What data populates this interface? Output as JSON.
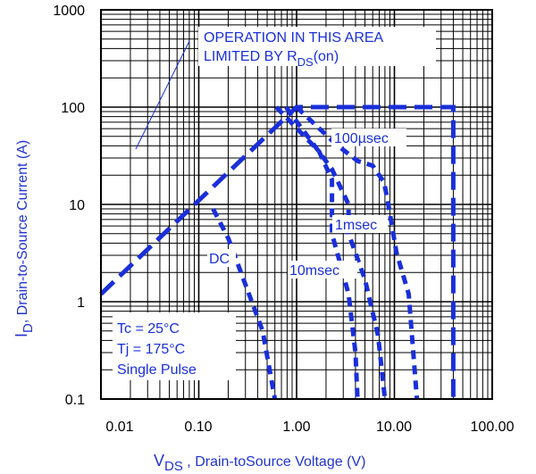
{
  "chart_data": {
    "type": "line",
    "x_scale": "log",
    "y_scale": "log",
    "xlim": [
      0.01,
      100
    ],
    "ylim": [
      0.1,
      1000
    ],
    "grid": true,
    "x_tick_labels": [
      "0.01",
      "0.10",
      "1.00",
      "10.00",
      "100.00"
    ],
    "y_tick_labels": [
      "0.1",
      "1",
      "10",
      "100",
      "1000"
    ],
    "xlabel": {
      "main": "V",
      "sub": "DS",
      "rest": " , Drain-toSource Voltage (V)"
    },
    "ylabel": {
      "main": "I",
      "sub": "D",
      "rest": ",  Drain-to-Source Current (A)"
    },
    "annotation_operation": {
      "line1": "OPERATION IN THIS AREA",
      "line2_main": "LIMITED BY R",
      "line2_sub": "DS",
      "line2_rest": "(on)"
    },
    "conditions": [
      "Tc = 25°C",
      "Tj = 175°C",
      "Single Pulse"
    ],
    "colors": {
      "curve": "#1a2fd9",
      "text": "#1a2fd9",
      "grid": "#000000"
    },
    "series": [
      {
        "name": "Rds(on) limit",
        "style": "long-dash",
        "points": [
          [
            0.01,
            1.2
          ],
          [
            0.1,
            11
          ],
          [
            1.0,
            100
          ],
          [
            40,
            100
          ],
          [
            40,
            0.1
          ]
        ]
      },
      {
        "name": "100µsec",
        "style": "dash",
        "points": [
          [
            1.0,
            100
          ],
          [
            2.5,
            42
          ],
          [
            4.2,
            28
          ],
          [
            6.0,
            25
          ],
          [
            7.8,
            17
          ],
          [
            8.4,
            12
          ],
          [
            10.5,
            3.2
          ],
          [
            14,
            1.2
          ],
          [
            17,
            0.1
          ]
        ]
      },
      {
        "name": "1msec",
        "style": "dash",
        "points": [
          [
            0.78,
            100
          ],
          [
            2.3,
            23
          ],
          [
            3.4,
            10
          ],
          [
            3.4,
            5
          ],
          [
            5.0,
            1.7
          ],
          [
            6.8,
            0.45
          ],
          [
            8.0,
            0.1
          ]
        ]
      },
      {
        "name": "10msec",
        "style": "dash",
        "points": [
          [
            0.62,
            100
          ],
          [
            1.7,
            35
          ],
          [
            2.3,
            18
          ],
          [
            2.3,
            5
          ],
          [
            3.4,
            1.2
          ],
          [
            4.0,
            0.3
          ],
          [
            4.2,
            0.1
          ]
        ]
      },
      {
        "name": "DC",
        "style": "dash",
        "points": [
          [
            0.14,
            9
          ],
          [
            0.2,
            4.5
          ],
          [
            0.45,
            0.5
          ],
          [
            0.6,
            0.1
          ]
        ]
      }
    ]
  }
}
